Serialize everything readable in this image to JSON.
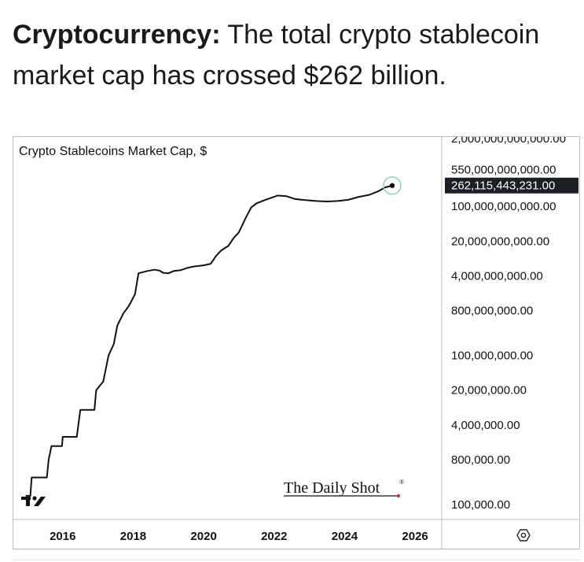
{
  "headline": {
    "bold": "Cryptocurrency:",
    "text": " The total crypto stablecoin market cap has crossed $262 billion."
  },
  "chart_data": {
    "type": "line",
    "title": "Crypto Stablecoins Market Cap, $",
    "y_scale": "log",
    "y_ticks": [
      "550,000,000,000.00",
      "100,000,000,000.00",
      "20,000,000,000.00",
      "4,000,000,000.00",
      "800,000,000.00",
      "100,000,000.00",
      "20,000,000.00",
      "4,000,000.00",
      "800,000.00",
      "100,000.00"
    ],
    "y_tick_values": [
      550000000000,
      100000000000,
      20000000000,
      4000000000,
      800000000,
      100000000,
      20000000,
      4000000,
      800000,
      100000
    ],
    "x_ticks": [
      "2016",
      "2018",
      "2020",
      "2022",
      "2024",
      "2026"
    ],
    "x_tick_values": [
      2016,
      2018,
      2020,
      2022,
      2024,
      2026
    ],
    "ylim": [
      60000,
      2000000000000
    ],
    "xlim": [
      2014.8,
      2026.6
    ],
    "last_value_label": "262,115,443,231.00",
    "last_value": 262115443231,
    "brand": "The Daily Shot",
    "series": [
      {
        "points": [
          [
            2014.95,
            150000
          ],
          [
            2015.08,
            150000
          ],
          [
            2015.12,
            350000
          ],
          [
            2015.55,
            350000
          ],
          [
            2015.6,
            800000
          ],
          [
            2015.68,
            1500000
          ],
          [
            2015.98,
            1500000
          ],
          [
            2016.0,
            2300000
          ],
          [
            2016.4,
            2300000
          ],
          [
            2016.5,
            8000000
          ],
          [
            2016.9,
            8000000
          ],
          [
            2016.95,
            20000000
          ],
          [
            2017.15,
            30000000
          ],
          [
            2017.3,
            100000000
          ],
          [
            2017.45,
            170000000
          ],
          [
            2017.55,
            400000000
          ],
          [
            2017.72,
            700000000
          ],
          [
            2017.88,
            1000000000
          ],
          [
            2018.05,
            1700000000
          ],
          [
            2018.15,
            4500000000
          ],
          [
            2018.4,
            5000000000
          ],
          [
            2018.6,
            5300000000
          ],
          [
            2018.75,
            5100000000
          ],
          [
            2018.85,
            4600000000
          ],
          [
            2019.0,
            4500000000
          ],
          [
            2019.15,
            5000000000
          ],
          [
            2019.35,
            5200000000
          ],
          [
            2019.55,
            5800000000
          ],
          [
            2019.75,
            6200000000
          ],
          [
            2020.0,
            6500000000
          ],
          [
            2020.2,
            7000000000
          ],
          [
            2020.35,
            10000000000
          ],
          [
            2020.5,
            13000000000
          ],
          [
            2020.7,
            16000000000
          ],
          [
            2020.85,
            23000000000
          ],
          [
            2021.0,
            30000000000
          ],
          [
            2021.2,
            60000000000
          ],
          [
            2021.35,
            95000000000
          ],
          [
            2021.5,
            115000000000
          ],
          [
            2021.75,
            135000000000
          ],
          [
            2022.1,
            165000000000
          ],
          [
            2022.35,
            160000000000
          ],
          [
            2022.6,
            140000000000
          ],
          [
            2022.9,
            133000000000
          ],
          [
            2023.2,
            128000000000
          ],
          [
            2023.5,
            125000000000
          ],
          [
            2023.8,
            128000000000
          ],
          [
            2024.1,
            135000000000
          ],
          [
            2024.4,
            155000000000
          ],
          [
            2024.7,
            170000000000
          ],
          [
            2024.95,
            200000000000
          ],
          [
            2025.15,
            240000000000
          ],
          [
            2025.35,
            262115443231
          ]
        ]
      }
    ]
  }
}
